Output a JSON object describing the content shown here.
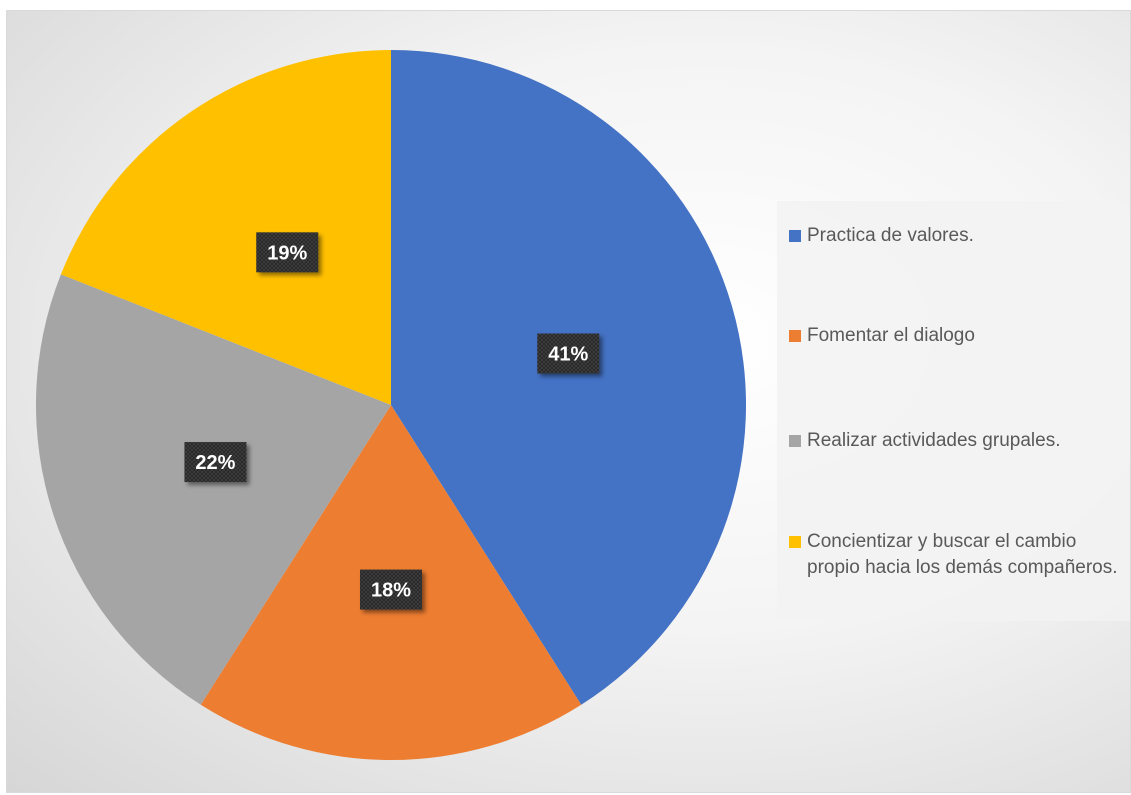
{
  "chart_data": {
    "type": "pie",
    "title": "",
    "categories": [
      "Practica de valores.",
      "Fomentar el dialogo",
      "Realizar actividades grupales.",
      "Concientizar y buscar el cambio propio hacia los demás compañeros."
    ],
    "values": [
      41,
      18,
      22,
      19
    ],
    "data_labels": [
      "41%",
      "18%",
      "22%",
      "19%"
    ],
    "colors": [
      "#4472C4",
      "#ED7D31",
      "#A5A5A5",
      "#FFC000"
    ],
    "start_angle": "12 o'clock",
    "direction": "clockwise",
    "legend_position": "right"
  }
}
